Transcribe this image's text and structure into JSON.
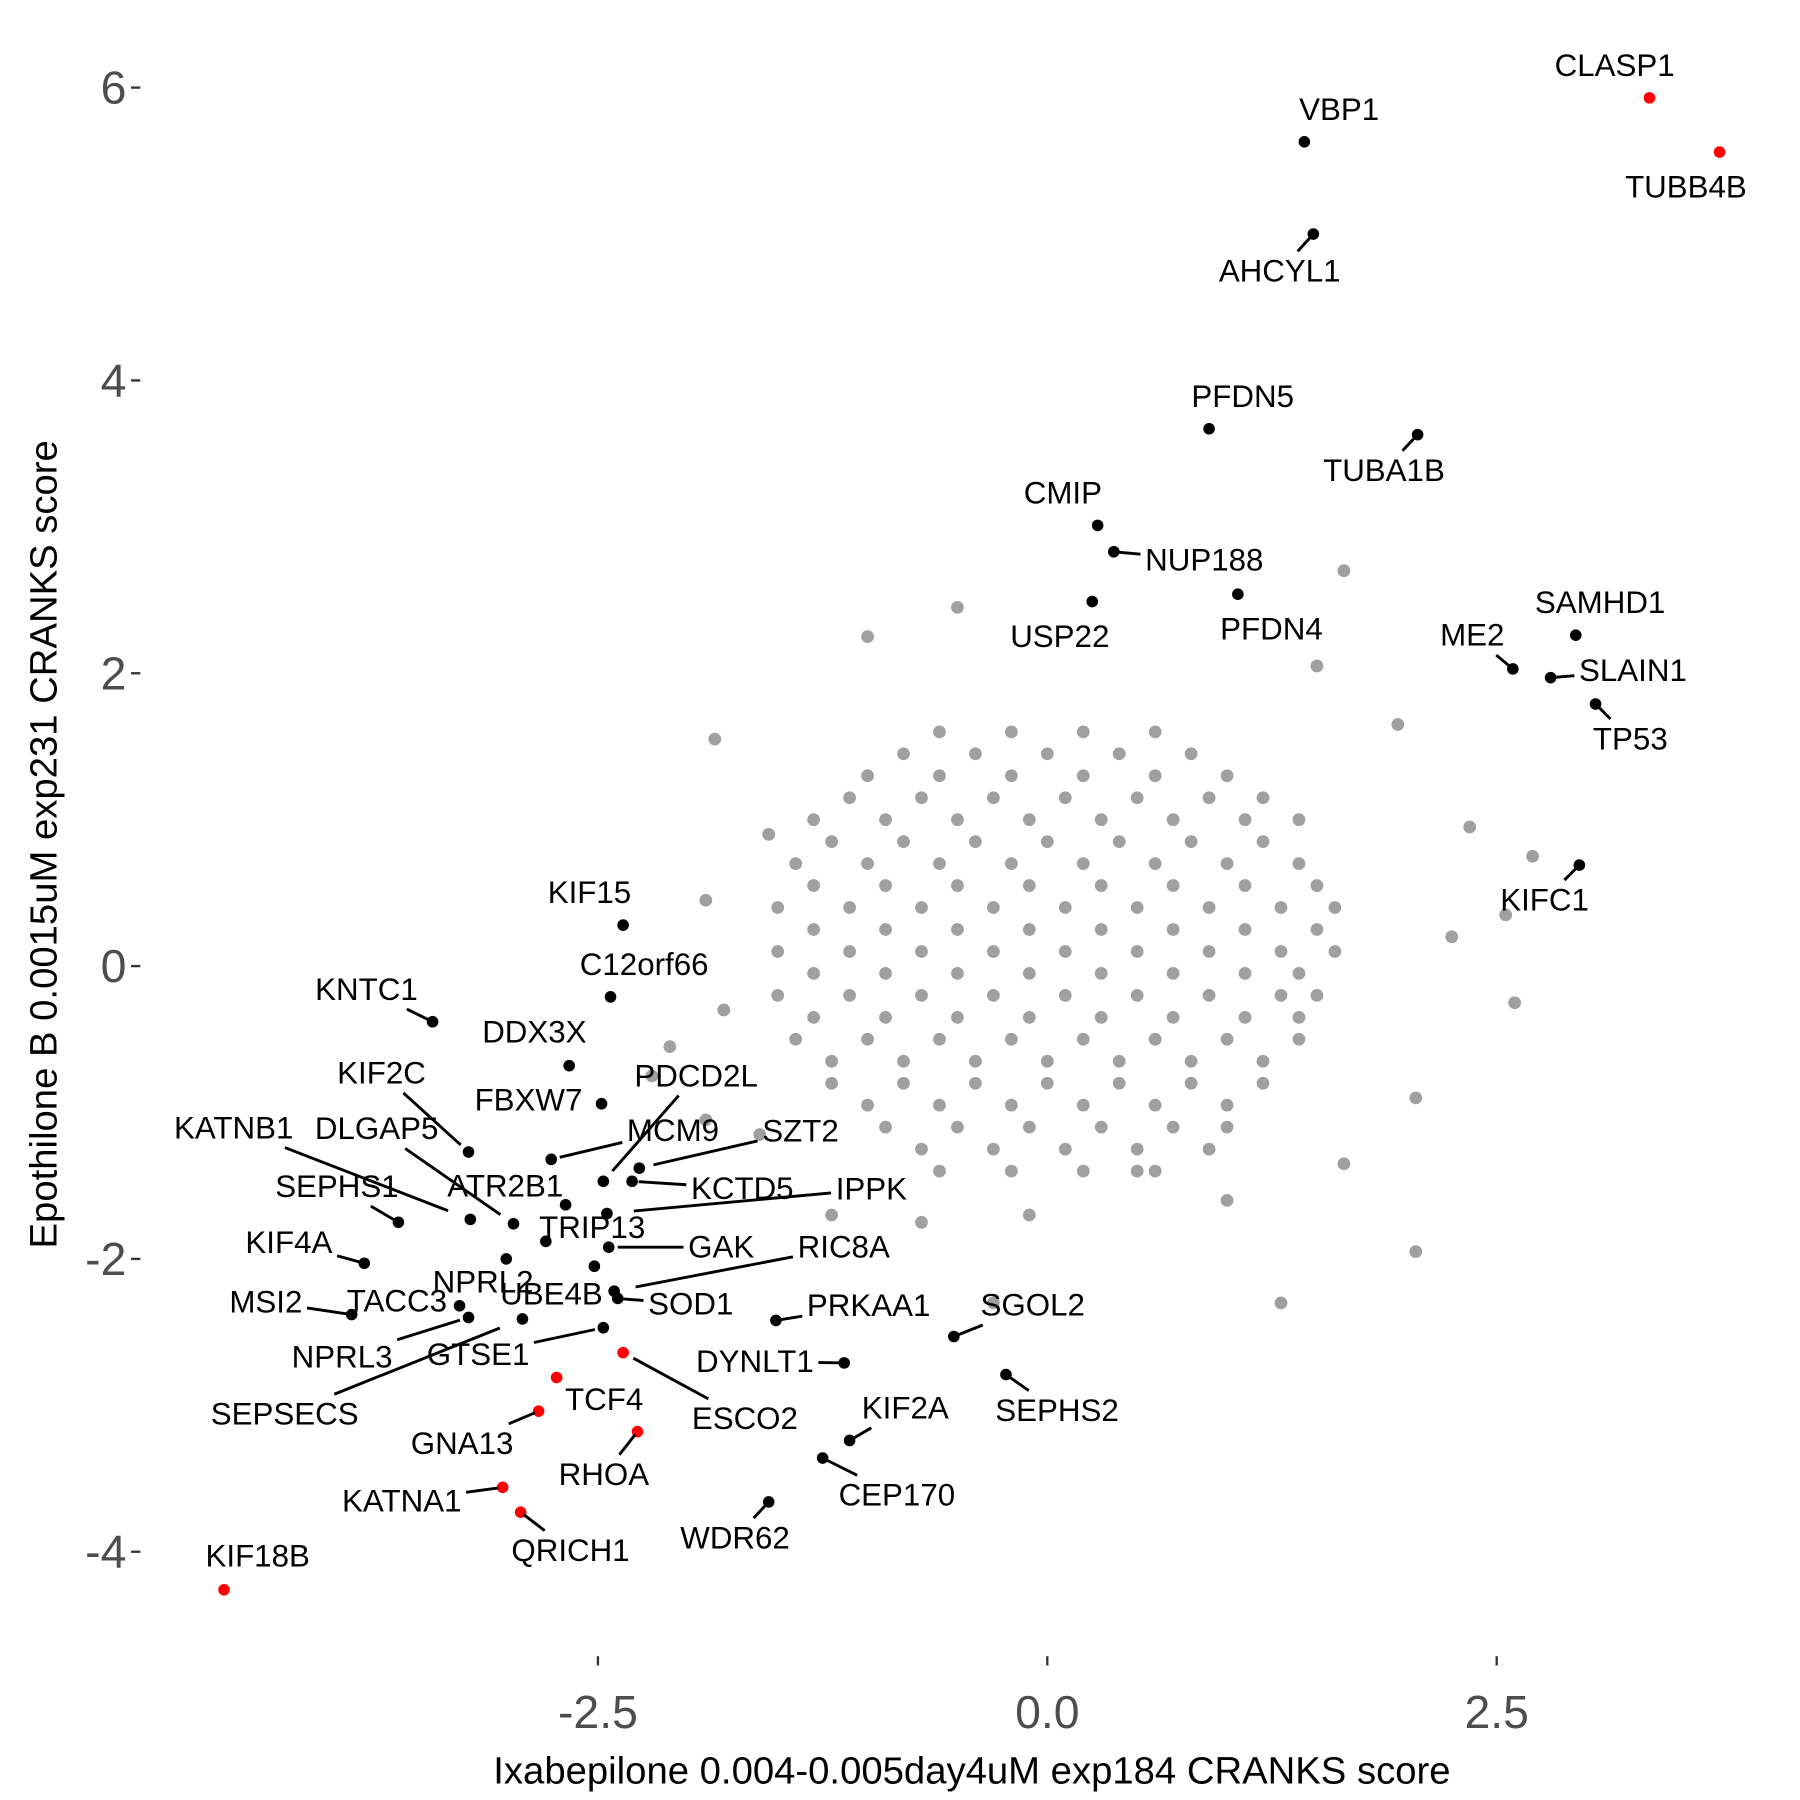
{
  "chart_data": {
    "type": "scatter",
    "x_label": "Ixabepilone 0.004-0.005day4uM exp184 CRANKS score",
    "y_label": "Epothilone B 0.0015uM exp231 CRANKS score",
    "xlim": [
      -5.02,
      4.11
    ],
    "ylim": [
      -4.65,
      6.44
    ],
    "xticks": [
      -2.5,
      {
        "value": 0,
        "label": "0.0"
      },
      2.5
    ],
    "yticks": [
      -4,
      -2,
      0,
      2,
      4,
      6
    ],
    "series": [
      {
        "color": "#a0a0a0",
        "x": [
          -0.6,
          -0.2,
          0.2,
          0.6,
          -0.8,
          -0.4,
          0,
          0.4,
          0.8,
          -1.0,
          -0.6,
          -0.2,
          0.2,
          0.6,
          1.0,
          -1.1,
          -0.7,
          -0.3,
          0.1,
          0.5,
          0.9,
          1.2,
          -1.3,
          -0.9,
          -0.5,
          -0.1,
          0.3,
          0.7,
          1.1,
          1.4,
          -1.2,
          -0.8,
          -0.4,
          0,
          0.4,
          0.8,
          1.2,
          -1.4,
          -1.0,
          -0.6,
          -0.2,
          0.2,
          0.6,
          1.0,
          1.4,
          -1.3,
          -0.9,
          -0.5,
          -0.1,
          0.3,
          0.7,
          1.1,
          1.5,
          -1.5,
          -1.1,
          -0.7,
          -0.3,
          0.1,
          0.5,
          0.9,
          1.3,
          1.6,
          -1.3,
          -0.9,
          -0.5,
          -0.1,
          0.3,
          0.7,
          1.1,
          1.5,
          -1.5,
          -1.1,
          -0.7,
          -0.3,
          0.1,
          0.5,
          0.9,
          1.3,
          1.6,
          -1.3,
          -0.9,
          -0.5,
          -0.1,
          0.3,
          0.7,
          1.1,
          1.4,
          -1.5,
          -1.1,
          -0.7,
          -0.3,
          0.1,
          0.5,
          0.9,
          1.3,
          1.5,
          -1.3,
          -0.9,
          -0.5,
          -0.1,
          0.3,
          0.7,
          1.1,
          1.4,
          -1.4,
          -1.0,
          -0.6,
          -0.2,
          0.2,
          0.6,
          1.0,
          1.4,
          -1.2,
          -0.8,
          -0.4,
          0,
          0.4,
          0.8,
          1.2,
          -1.2,
          -0.8,
          -0.4,
          0,
          0.4,
          0.8,
          1.2,
          -1.0,
          -0.6,
          -0.2,
          0.2,
          0.6,
          1.0,
          -0.9,
          -0.5,
          -0.1,
          0.3,
          0.7,
          1.0,
          -0.7,
          -0.3,
          0.1,
          0.5,
          0.9,
          -0.6,
          -0.2,
          0.2,
          0.6,
          -1.85,
          -1.9,
          -1.8,
          -2.1,
          -2.2,
          -1.6,
          -1.2,
          -0.7,
          -0.3,
          -0.1,
          0.5,
          1.0,
          1.65,
          2.05,
          2.25,
          2.35,
          2.7,
          2.6,
          1.95,
          1.65,
          1.5,
          -1.0,
          -0.5,
          2.05,
          1.3,
          -1.9,
          -1.55,
          2.55
        ],
        "values": [
          1.6,
          1.6,
          1.6,
          1.6,
          1.45,
          1.45,
          1.45,
          1.45,
          1.45,
          1.3,
          1.3,
          1.3,
          1.3,
          1.3,
          1.3,
          1.15,
          1.15,
          1.15,
          1.15,
          1.15,
          1.15,
          1.15,
          1.0,
          1.0,
          1.0,
          1.0,
          1.0,
          1.0,
          1.0,
          1.0,
          0.85,
          0.85,
          0.85,
          0.85,
          0.85,
          0.85,
          0.85,
          0.7,
          0.7,
          0.7,
          0.7,
          0.7,
          0.7,
          0.7,
          0.7,
          0.55,
          0.55,
          0.55,
          0.55,
          0.55,
          0.55,
          0.55,
          0.55,
          0.4,
          0.4,
          0.4,
          0.4,
          0.4,
          0.4,
          0.4,
          0.4,
          0.4,
          0.25,
          0.25,
          0.25,
          0.25,
          0.25,
          0.25,
          0.25,
          0.25,
          0.1,
          0.1,
          0.1,
          0.1,
          0.1,
          0.1,
          0.1,
          0.1,
          0.1,
          -0.05,
          -0.05,
          -0.05,
          -0.05,
          -0.05,
          -0.05,
          -0.05,
          -0.05,
          -0.2,
          -0.2,
          -0.2,
          -0.2,
          -0.2,
          -0.2,
          -0.2,
          -0.2,
          -0.2,
          -0.35,
          -0.35,
          -0.35,
          -0.35,
          -0.35,
          -0.35,
          -0.35,
          -0.35,
          -0.5,
          -0.5,
          -0.5,
          -0.5,
          -0.5,
          -0.5,
          -0.5,
          -0.5,
          -0.65,
          -0.65,
          -0.65,
          -0.65,
          -0.65,
          -0.65,
          -0.65,
          -0.8,
          -0.8,
          -0.8,
          -0.8,
          -0.8,
          -0.8,
          -0.8,
          -0.95,
          -0.95,
          -0.95,
          -0.95,
          -0.95,
          -0.95,
          -1.1,
          -1.1,
          -1.1,
          -1.1,
          -1.1,
          -1.1,
          -1.25,
          -1.25,
          -1.25,
          -1.25,
          -1.25,
          -1.4,
          -1.4,
          -1.4,
          -1.4,
          1.55,
          0.45,
          -0.3,
          -0.55,
          -0.75,
          -1.15,
          -1.7,
          -1.75,
          -2.3,
          -1.7,
          -1.4,
          -1.6,
          -1.35,
          -0.9,
          0.2,
          0.95,
          0.75,
          -0.25,
          1.65,
          2.7,
          2.05,
          2.25,
          2.45,
          -1.95,
          -2.3,
          -1.05,
          0.9,
          0.35
        ]
      },
      {
        "color": "#000000",
        "labels": [
          "VBP1",
          "AHCYL1",
          "PFDN5",
          "TUBA1B",
          "CMIP",
          "NUP188",
          "USP22",
          "PFDN4",
          "SAMHD1",
          "ME2",
          "SLAIN1",
          "TP53",
          "KIFC1",
          "KIF15",
          "C12orf66",
          "KNTC1",
          "DDX3X",
          "FBXW7",
          "PDCD2L",
          "KIF2C",
          "KATNB1",
          "DLGAP5",
          "SEPHS1",
          "ATR2B1",
          "MCM9",
          "SZT2",
          "KCTD5",
          "IPPK",
          "TRIP13",
          "GAK",
          "RIC8A",
          "KIF4A",
          "NPRL2",
          "UBE4B",
          "SOD1",
          "MSI2",
          "TACC3",
          "NPRL3",
          "SEPSECS",
          "GTSE1",
          "PRKAA1",
          "SGOL2",
          "DYNLT1",
          "SEPHS2",
          "KIF2A",
          "CEP170",
          "WDR62"
        ],
        "x": [
          1.43,
          1.48,
          0.9,
          2.06,
          0.28,
          0.37,
          0.25,
          1.06,
          2.94,
          2.59,
          2.8,
          3.05,
          2.96,
          -2.36,
          -2.43,
          -3.42,
          -2.66,
          -2.48,
          -2.47,
          -3.22,
          -3.21,
          -2.97,
          -3.61,
          -2.68,
          -2.76,
          -2.27,
          -2.31,
          -2.45,
          -2.79,
          -2.44,
          -2.41,
          -3.8,
          -3.01,
          -2.52,
          -2.39,
          -3.87,
          -3.27,
          -3.22,
          -2.92,
          -2.47,
          -1.51,
          -0.52,
          -1.13,
          -0.23,
          -1.1,
          -1.25,
          -1.55
        ],
        "values": [
          5.63,
          5.0,
          3.67,
          3.63,
          3.01,
          2.83,
          2.49,
          2.54,
          2.26,
          2.03,
          1.97,
          1.79,
          0.69,
          0.28,
          -0.21,
          -0.38,
          -0.68,
          -0.94,
          -1.47,
          -1.27,
          -1.73,
          -1.76,
          -1.75,
          -1.63,
          -1.32,
          -1.38,
          -1.47,
          -1.69,
          -1.88,
          -1.92,
          -2.22,
          -2.03,
          -2.0,
          -2.05,
          -2.27,
          -2.38,
          -2.32,
          -2.4,
          -2.41,
          -2.47,
          -2.42,
          -2.53,
          -2.71,
          -2.79,
          -3.24,
          -3.36,
          -3.66
        ]
      },
      {
        "color": "#ff0000",
        "labels": [
          "CLASP1",
          "TUBB4B",
          "ESCO2",
          "TCF4",
          "GNA13",
          "RHOA",
          "KATNA1",
          "QRICH1",
          "KIF18B"
        ],
        "x": [
          3.35,
          3.74,
          -2.36,
          -2.73,
          -2.83,
          -2.28,
          -3.03,
          -2.93,
          -4.58
        ],
        "values": [
          5.93,
          5.56,
          -2.64,
          -2.81,
          -3.04,
          -3.18,
          -3.56,
          -3.73,
          -4.26
        ]
      }
    ]
  }
}
